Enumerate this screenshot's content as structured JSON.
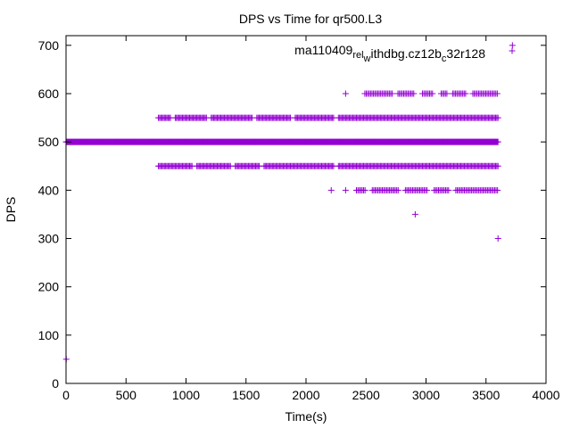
{
  "chart_data": {
    "type": "scatter",
    "title": "DPS vs Time for qr500.L3",
    "xlabel": "Time(s)",
    "ylabel": "DPS",
    "xlim": [
      0,
      4000
    ],
    "ylim": [
      0,
      720
    ],
    "xticks": [
      0,
      500,
      1000,
      1500,
      2000,
      2500,
      3000,
      3500,
      4000
    ],
    "yticks": [
      0,
      100,
      200,
      300,
      400,
      500,
      600,
      700
    ],
    "grid": false,
    "legend_position": "top-right",
    "marker": "plus",
    "colors": {
      "series": "#9400d3",
      "axis": "#000000"
    },
    "series": [
      {
        "name": "ma110409_rel_withdbg.cz12b_c32r128",
        "name_parts": {
          "p1": "ma110409",
          "sub1": "rel",
          "p2": "",
          "sub2": "w",
          "p3": "ithdbg.cz12b",
          "sub3": "c",
          "p4": "32r128"
        },
        "bands": [
          {
            "y": 500,
            "x_start": 0,
            "x_end": 3600,
            "step": 5,
            "gaps": []
          },
          {
            "y": 550,
            "x_start": 770,
            "x_end": 3600,
            "step": 10,
            "gaps": [
              [
                880,
                900
              ],
              [
                1180,
                1200
              ],
              [
                1560,
                1580
              ],
              [
                1880,
                1900
              ],
              [
                2240,
                2260
              ]
            ]
          },
          {
            "y": 450,
            "x_start": 770,
            "x_end": 3600,
            "step": 10,
            "gaps": [
              [
                1060,
                1080
              ],
              [
                1380,
                1400
              ],
              [
                1620,
                1640
              ],
              [
                2240,
                2260
              ]
            ]
          },
          {
            "y": 600,
            "x_start": 2490,
            "x_end": 3600,
            "step": 12,
            "gaps": [
              [
                2720,
                2760
              ],
              [
                2900,
                2960
              ],
              [
                3060,
                3120
              ],
              [
                3180,
                3220
              ],
              [
                3340,
                3380
              ]
            ]
          },
          {
            "y": 400,
            "x_start": 2420,
            "x_end": 3600,
            "step": 12,
            "gaps": [
              [
                2500,
                2540
              ],
              [
                2780,
                2820
              ],
              [
                3020,
                3060
              ],
              [
                3200,
                3240
              ]
            ]
          }
        ],
        "points": [
          [
            2,
            50
          ],
          [
            2330,
            600
          ],
          [
            2210,
            400
          ],
          [
            2330,
            400
          ],
          [
            2910,
            350
          ],
          [
            3600,
            300
          ],
          [
            3720,
            700
          ]
        ]
      }
    ]
  }
}
